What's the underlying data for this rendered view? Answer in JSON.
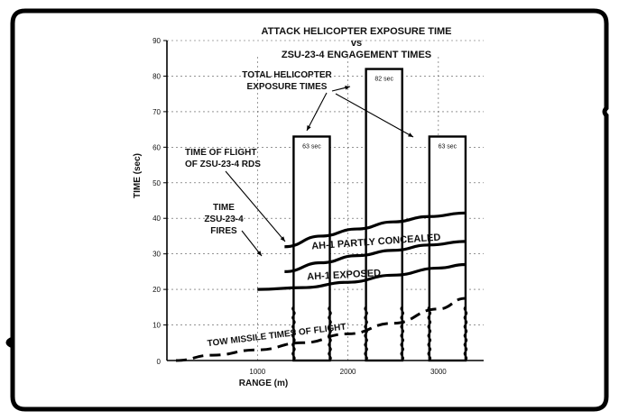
{
  "chart_data": {
    "type": "bar",
    "title": [
      "ATTACK HELICOPTER EXPOSURE TIME",
      "vs",
      "ZSU-23-4 ENGAGEMENT TIMES"
    ],
    "xlabel": "RANGE (m)",
    "ylabel": "TIME (sec)",
    "xlim": [
      0,
      3500
    ],
    "ylim": [
      0,
      90
    ],
    "x_ticks": [
      1000,
      2000,
      3000
    ],
    "y_ticks": [
      10,
      20,
      30,
      40,
      50,
      60,
      70,
      80,
      90
    ],
    "bars": [
      {
        "x_start": 1400,
        "x_end": 1800,
        "value": 63,
        "label": "63 sec"
      },
      {
        "x_start": 2200,
        "x_end": 2600,
        "value": 82,
        "label": "82 sec"
      },
      {
        "x_start": 2900,
        "x_end": 3300,
        "value": 63,
        "label": "63 sec"
      }
    ],
    "series": [
      {
        "name": "AH-1 PARTLY CONCEALED",
        "x": [
          1300,
          1700,
          2100,
          2500,
          2900,
          3300
        ],
        "upper": [
          32,
          35,
          37,
          39,
          40.5,
          41.5
        ],
        "lower": [
          25,
          27.5,
          29.5,
          31,
          32.5,
          33.5
        ]
      },
      {
        "name": "AH-1 EXPOSED",
        "x": [
          1000,
          1500,
          2000,
          2500,
          3000,
          3300
        ],
        "upper": [
          20,
          20.5,
          22,
          24,
          26,
          27
        ],
        "lower": [
          20,
          20.5,
          22,
          24,
          26,
          27
        ]
      },
      {
        "name": "TOW MISSILE TIMES OF FLIGHT",
        "x": [
          100,
          500,
          1000,
          1500,
          2000,
          2500,
          3000,
          3300
        ],
        "values": [
          0,
          1.5,
          3,
          5,
          7.5,
          10.5,
          14.5,
          17.5
        ]
      }
    ],
    "annotations": {
      "total_exposure": "TOTAL HELICOPTER EXPOSURE TIMES",
      "tof_zsu": "TIME OF FLIGHT OF ZSU-23-4 RDS",
      "time_zsu_fires": "TIME ZSU-23-4 FIRES"
    }
  }
}
